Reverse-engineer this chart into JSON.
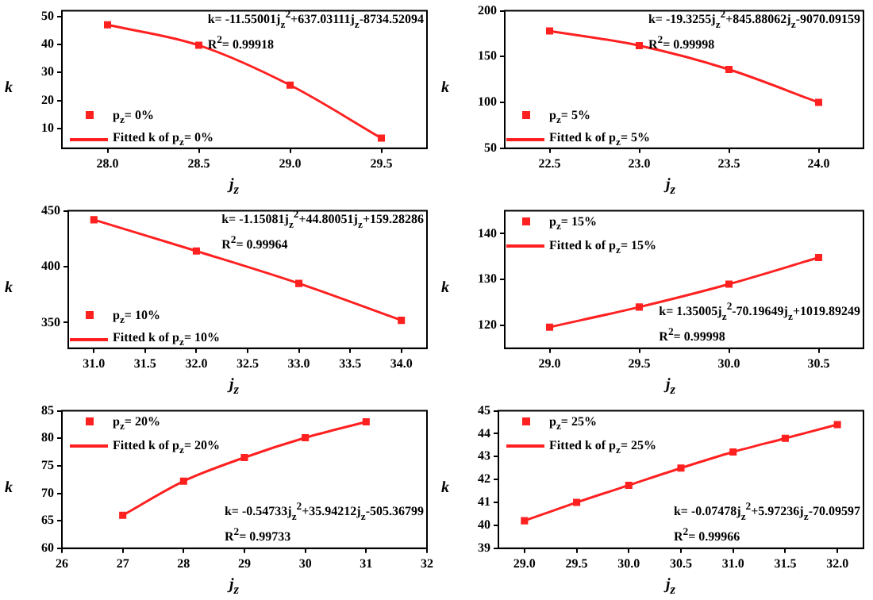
{
  "chart_data": [
    {
      "type": "scatter",
      "xlabel": "j$_{z}$",
      "ylabel": "k",
      "xlim": [
        27.75,
        29.75
      ],
      "xticks": [
        {
          "value": 28,
          "label": "28.0"
        },
        {
          "value": 28.5,
          "label": "28.5"
        },
        {
          "value": 29,
          "label": "29.0"
        },
        {
          "value": 29.5,
          "label": "29.5"
        }
      ],
      "ylim": [
        3,
        52
      ],
      "yticks": [
        10,
        20,
        30,
        40,
        50
      ],
      "legend": "bottom left",
      "line_style": "solid",
      "annotations": [
        "k= -11.55001j$_{z}$$^{2}$+637.03111j$_{z}$-8734.52094",
        "R$^{2}$= 0.99918"
      ],
      "series": [
        {
          "name": "p$_{z}$= 0%",
          "type": "scatter",
          "marker": "square",
          "color": "#ff2020",
          "x": [
            28,
            28.5,
            29,
            29.5
          ],
          "values": [
            47,
            39.7,
            25.5,
            6.6
          ]
        },
        {
          "name": "Fitted k of p$_{z}$= 0%",
          "type": "line",
          "color": "#ff2020",
          "x": [
            28,
            28.5,
            29,
            29.5
          ],
          "values": [
            47,
            39.7,
            25.5,
            6.6
          ]
        }
      ]
    },
    {
      "type": "scatter",
      "xlabel": "j$_{z}$",
      "ylabel": "k",
      "xlim": [
        22.25,
        24.25
      ],
      "xticks": [
        {
          "value": 22.5,
          "label": "22.5"
        },
        {
          "value": 23,
          "label": "23.0"
        },
        {
          "value": 23.5,
          "label": "23.5"
        },
        {
          "value": 24,
          "label": "24.0"
        }
      ],
      "ylim": [
        50,
        200
      ],
      "yticks": [
        50,
        100,
        150,
        200
      ],
      "legend": "bottom left",
      "line_style": "solid",
      "annotations": [
        "k= -19.3255j$_{z}$$^{2}$+845.88062j$_{z}$-9070.09159",
        "R$^{2}$= 0.99998"
      ],
      "series": [
        {
          "name": "p$_{z}$= 5%",
          "type": "scatter",
          "marker": "square",
          "color": "#ff2020",
          "x": [
            22.5,
            23,
            23.5,
            24
          ],
          "values": [
            178,
            162,
            136,
            100
          ]
        },
        {
          "name": "Fitted k of p$_{z}$= 5%",
          "type": "line",
          "color": "#ff2020",
          "x": [
            22.5,
            23,
            23.5,
            24
          ],
          "values": [
            178,
            162,
            136,
            100
          ]
        }
      ]
    },
    {
      "type": "scatter",
      "xlabel": "j$_{z}$",
      "ylabel": "k",
      "xlim": [
        30.75,
        34.25
      ],
      "xticks": [
        {
          "value": 31,
          "label": "31.0"
        },
        {
          "value": 31.5,
          "label": "31.5"
        },
        {
          "value": 32,
          "label": "32.0"
        },
        {
          "value": 32.5,
          "label": "32.5"
        },
        {
          "value": 33,
          "label": "33.0"
        },
        {
          "value": 33.5,
          "label": "33.5"
        },
        {
          "value": 34,
          "label": "34.0"
        }
      ],
      "ylim": [
        327,
        450
      ],
      "yticks": [
        350,
        400,
        450
      ],
      "legend": "bottom left",
      "line_style": "solid",
      "annotations": [
        "k= -1.15081j$_{z}$$^{2}$+44.80051j$_{z}$+159.28286",
        "R$^{2}$= 0.99964"
      ],
      "series": [
        {
          "name": "p$_{z}$= 10%",
          "type": "scatter",
          "marker": "square",
          "color": "#ff2020",
          "x": [
            31,
            32,
            33,
            34
          ],
          "values": [
            442,
            414,
            385,
            352
          ]
        },
        {
          "name": "Fitted k of p$_{z}$= 10%",
          "type": "line",
          "color": "#ff2020",
          "x": [
            31,
            32,
            33,
            34
          ],
          "values": [
            442,
            414,
            385,
            352
          ]
        }
      ]
    },
    {
      "type": "scatter",
      "xlabel": "j$_{z}$",
      "ylabel": "k",
      "xlim": [
        28.75,
        30.75
      ],
      "xticks": [
        {
          "value": 29,
          "label": "29.0"
        },
        {
          "value": 29.5,
          "label": "29.5"
        },
        {
          "value": 30,
          "label": "30.0"
        },
        {
          "value": 30.5,
          "label": "30.5"
        }
      ],
      "ylim": [
        115,
        145
      ],
      "yticks": [
        120,
        130,
        140
      ],
      "legend": "top left",
      "line_style": "solid",
      "annotations": [
        "k= 1.35005j$_{z}$$^{2}$-70.19649j$_{z}$+1019.89249",
        "R$^{2}$= 0.99998"
      ],
      "series": [
        {
          "name": "p$_{z}$= 15%",
          "type": "scatter",
          "marker": "square",
          "color": "#ff2020",
          "x": [
            29,
            29.5,
            30,
            30.5
          ],
          "values": [
            119.6,
            124,
            129,
            134.8
          ]
        },
        {
          "name": "Fitted k of p$_{z}$= 15%",
          "type": "line",
          "color": "#ff2020",
          "x": [
            29,
            29.5,
            30,
            30.5
          ],
          "values": [
            119.6,
            124,
            129,
            134.8
          ]
        }
      ]
    },
    {
      "type": "scatter",
      "xlabel": "j$_{z}$",
      "ylabel": "k",
      "xlim": [
        26,
        32
      ],
      "xticks": [
        26,
        27,
        28,
        29,
        30,
        31,
        32
      ],
      "ylim": [
        60,
        85
      ],
      "yticks": [
        60,
        65,
        70,
        75,
        80,
        85
      ],
      "legend": "top left",
      "line_style": "solid",
      "annotations": [
        "k= -0.54733j$_{z}$$^{2}$+35.94212j$_{z}$-505.36799",
        "R$^{2}$= 0.99733"
      ],
      "series": [
        {
          "name": "p$_{z}$= 20%",
          "type": "scatter",
          "marker": "square",
          "color": "#ff2020",
          "x": [
            27,
            28,
            29,
            30,
            31
          ],
          "values": [
            66,
            72.2,
            76.5,
            80.1,
            83
          ]
        },
        {
          "name": "Fitted k of p$_{z}$= 20%",
          "type": "line",
          "color": "#ff2020",
          "x": [
            27,
            28,
            29,
            30,
            31
          ],
          "values": [
            66,
            72.2,
            76.5,
            80.1,
            83
          ]
        }
      ]
    },
    {
      "type": "scatter",
      "xlabel": "j$_{z}$",
      "ylabel": "k",
      "xlim": [
        28.75,
        32.25
      ],
      "xticks": [
        {
          "value": 29,
          "label": "29.0"
        },
        {
          "value": 29.5,
          "label": "29.5"
        },
        {
          "value": 30,
          "label": "30.0"
        },
        {
          "value": 30.5,
          "label": "30.5"
        },
        {
          "value": 31,
          "label": "31.0"
        },
        {
          "value": 31.5,
          "label": "31.5"
        },
        {
          "value": 32,
          "label": "32.0"
        }
      ],
      "ylim": [
        39,
        45
      ],
      "yticks": [
        39,
        40,
        41,
        42,
        43,
        44,
        45
      ],
      "legend": "top left",
      "line_style": "solid",
      "annotations": [
        "k= -0.07478j$_{z}$$^{2}$+5.97236j$_{z}$-70.09597",
        "R$^{2}$= 0.99966"
      ],
      "series": [
        {
          "name": "p$_{z}$= 25%",
          "type": "scatter",
          "marker": "square",
          "color": "#ff2020",
          "x": [
            29,
            29.5,
            30,
            30.5,
            31,
            31.5,
            32
          ],
          "values": [
            40.2,
            41,
            41.75,
            42.5,
            43.2,
            43.8,
            44.4
          ]
        },
        {
          "name": "Fitted k of p$_{z}$= 25%",
          "type": "line",
          "color": "#ff2020",
          "x": [
            29,
            29.5,
            30,
            30.5,
            31,
            31.5,
            32
          ],
          "values": [
            40.2,
            41,
            41.75,
            42.5,
            43.2,
            43.8,
            44.4
          ]
        }
      ]
    }
  ]
}
